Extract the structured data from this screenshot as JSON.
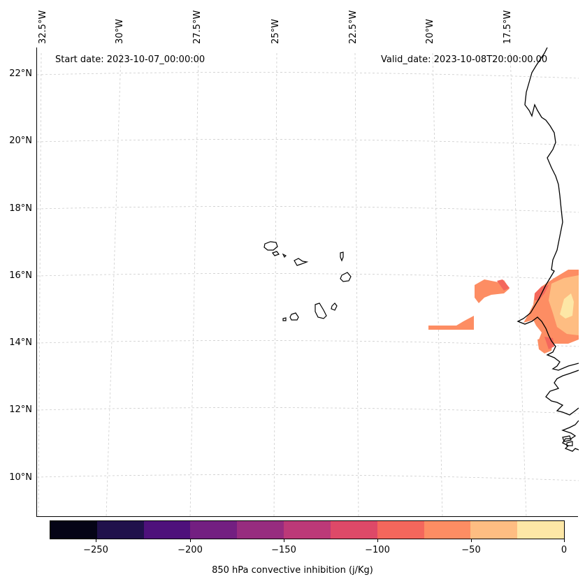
{
  "header": {
    "start_date": "Start date: 2023-10-07_00:00:00",
    "valid_date": "Valid_date: 2023-10-08T20:00:00.00"
  },
  "map": {
    "lon_labels": [
      "32.5°W",
      "30°W",
      "27.5°W",
      "25°W",
      "22.5°W",
      "20°W",
      "17.5°W"
    ],
    "lat_labels": [
      "22°N",
      "20°N",
      "18°N",
      "16°N",
      "14°N",
      "12°N",
      "10°N"
    ],
    "coastline_color": "#000000",
    "gridline_color": "#cccccc"
  },
  "colorbar": {
    "title": "850 hPa convective inhibition (j/Kg)",
    "tick_labels": [
      "−250",
      "−200",
      "−150",
      "−100",
      "−50",
      "0"
    ],
    "colors": [
      "#050416",
      "#20114b",
      "#4e117b",
      "#731f81",
      "#972c7f",
      "#bc3978",
      "#de4968",
      "#f4675c",
      "#fd8d63",
      "#febd82",
      "#fde7a6"
    ]
  }
}
